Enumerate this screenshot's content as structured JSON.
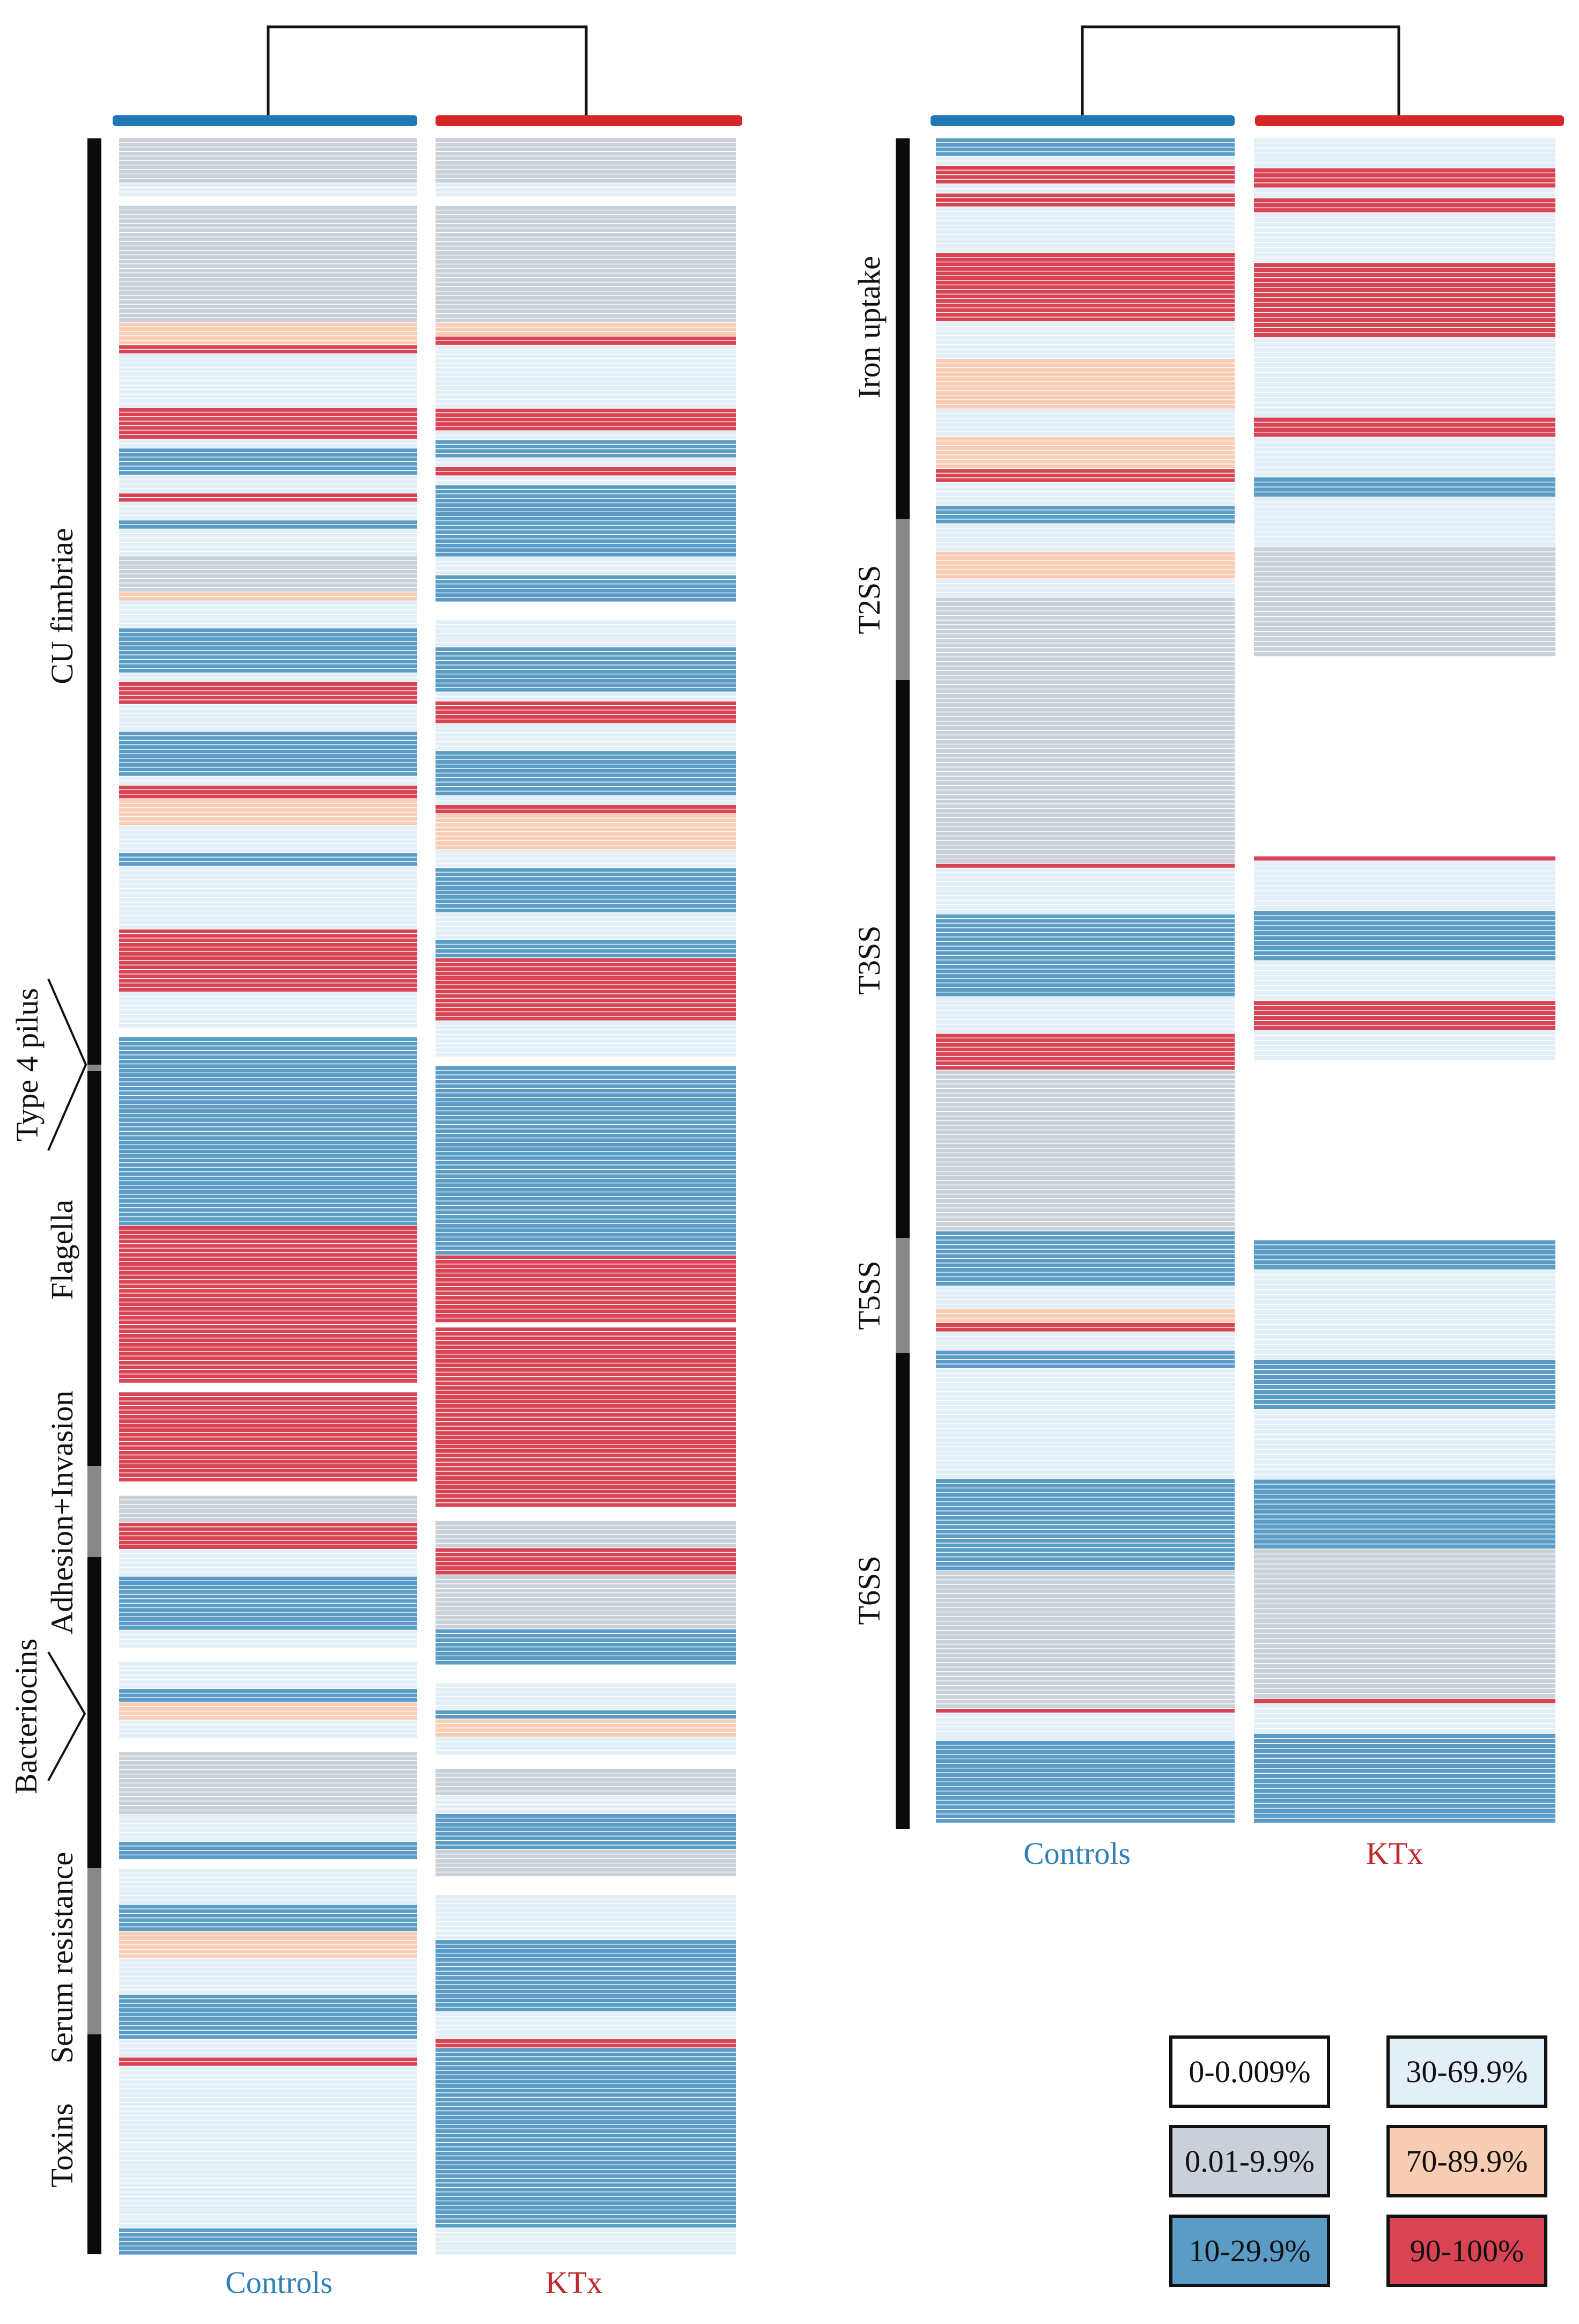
{
  "colors": {
    "white": "#ffffff",
    "grey": "#c9d0d8",
    "blue": "#5a9cc5",
    "light": "#e3eff7",
    "orange": "#f8cdb4",
    "red": "#d94455",
    "controls_bar": "#1f77b4",
    "ktx_bar": "#d62728"
  },
  "chart_data": [
    {
      "type": "heatmap",
      "title": "",
      "columns": [
        "Controls",
        "KTx"
      ],
      "category_labels": [
        "CU fimbriae",
        "Type 4 pilus",
        "Flagella",
        "Adhesion+Invasion",
        "Bacteriocins",
        "Serum resistance",
        "Toxins"
      ],
      "dendrogram": [
        "Controls",
        "KTx"
      ],
      "blocks": {
        "Controls": [
          [
            "grey",
            10
          ],
          [
            "light",
            3
          ],
          [
            "white",
            2
          ],
          [
            "grey",
            26
          ],
          [
            "orange",
            5
          ],
          [
            "red",
            2
          ],
          [
            "light",
            12
          ],
          [
            "red",
            7
          ],
          [
            "light",
            2
          ],
          [
            "blue",
            6
          ],
          [
            "light",
            4
          ],
          [
            "red",
            2
          ],
          [
            "light",
            4
          ],
          [
            "blue",
            2
          ],
          [
            "light",
            6
          ],
          [
            "grey",
            8
          ],
          [
            "orange",
            2
          ],
          [
            "light",
            6
          ],
          [
            "blue",
            10
          ],
          [
            "light",
            2
          ],
          [
            "red",
            5
          ],
          [
            "light",
            6
          ],
          [
            "blue",
            10
          ],
          [
            "light",
            2
          ],
          [
            "red",
            3
          ],
          [
            "orange",
            6
          ],
          [
            "light",
            6
          ],
          [
            "blue",
            3
          ],
          [
            "light",
            14
          ],
          [
            "red",
            14
          ],
          [
            "light",
            8
          ],
          [
            "white",
            2
          ],
          [
            "blue",
            42
          ],
          [
            "red",
            35
          ],
          [
            "white",
            2
          ],
          [
            "red",
            20
          ],
          [
            "white",
            3
          ],
          [
            "grey",
            6
          ],
          [
            "red",
            6
          ],
          [
            "light",
            6
          ],
          [
            "blue",
            12
          ],
          [
            "light",
            4
          ],
          [
            "white",
            3
          ],
          [
            "light",
            6
          ],
          [
            "blue",
            3
          ],
          [
            "orange",
            4
          ],
          [
            "light",
            4
          ],
          [
            "white",
            3
          ],
          [
            "grey",
            14
          ],
          [
            "light",
            6
          ],
          [
            "blue",
            4
          ],
          [
            "white",
            2
          ],
          [
            "light",
            8
          ],
          [
            "blue",
            6
          ],
          [
            "orange",
            6
          ],
          [
            "light",
            8
          ],
          [
            "blue",
            10
          ],
          [
            "light",
            4
          ],
          [
            "red",
            2
          ],
          [
            "light",
            36
          ],
          [
            "blue",
            6
          ]
        ],
        "KTx": [
          [
            "grey",
            10
          ],
          [
            "light",
            3
          ],
          [
            "white",
            2
          ],
          [
            "grey",
            26
          ],
          [
            "orange",
            3
          ],
          [
            "red",
            2
          ],
          [
            "light",
            14
          ],
          [
            "red",
            5
          ],
          [
            "light",
            2
          ],
          [
            "blue",
            4
          ],
          [
            "light",
            2
          ],
          [
            "red",
            2
          ],
          [
            "light",
            2
          ],
          [
            "blue",
            16
          ],
          [
            "light",
            4
          ],
          [
            "blue",
            6
          ],
          [
            "white",
            4
          ],
          [
            "light",
            6
          ],
          [
            "blue",
            10
          ],
          [
            "light",
            2
          ],
          [
            "red",
            5
          ],
          [
            "light",
            6
          ],
          [
            "blue",
            10
          ],
          [
            "light",
            2
          ],
          [
            "red",
            2
          ],
          [
            "orange",
            8
          ],
          [
            "light",
            4
          ],
          [
            "blue",
            10
          ],
          [
            "light",
            6
          ],
          [
            "blue",
            4
          ],
          [
            "red",
            14
          ],
          [
            "light",
            8
          ],
          [
            "white",
            2
          ],
          [
            "blue",
            42
          ],
          [
            "red",
            15
          ],
          [
            "white",
            1
          ],
          [
            "red",
            40
          ],
          [
            "white",
            3
          ],
          [
            "grey",
            6
          ],
          [
            "red",
            6
          ],
          [
            "grey",
            12
          ],
          [
            "blue",
            8
          ],
          [
            "white",
            4
          ],
          [
            "light",
            6
          ],
          [
            "blue",
            2
          ],
          [
            "orange",
            4
          ],
          [
            "light",
            4
          ],
          [
            "white",
            3
          ],
          [
            "grey",
            6
          ],
          [
            "light",
            4
          ],
          [
            "blue",
            8
          ],
          [
            "grey",
            6
          ],
          [
            "white",
            4
          ],
          [
            "light",
            10
          ],
          [
            "blue",
            16
          ],
          [
            "light",
            6
          ],
          [
            "red",
            2
          ],
          [
            "blue",
            40
          ],
          [
            "light",
            6
          ]
        ]
      }
    },
    {
      "type": "heatmap",
      "title": "",
      "columns": [
        "Controls",
        "KTx"
      ],
      "category_labels": [
        "Iron uptake",
        "T2SS",
        "T3SS",
        "T5SS",
        "T6SS"
      ],
      "dendrogram": [
        "Controls",
        "KTx"
      ],
      "blocks": {
        "Controls": [
          [
            "blue",
            4
          ],
          [
            "light",
            2
          ],
          [
            "red",
            4
          ],
          [
            "light",
            2
          ],
          [
            "red",
            3
          ],
          [
            "light",
            10
          ],
          [
            "red",
            15
          ],
          [
            "light",
            8
          ],
          [
            "orange",
            11
          ],
          [
            "light",
            6
          ],
          [
            "orange",
            7
          ],
          [
            "red",
            3
          ],
          [
            "light",
            5
          ],
          [
            "blue",
            4
          ],
          [
            "light",
            6
          ],
          [
            "orange",
            6
          ],
          [
            "light",
            4
          ],
          [
            "grey",
            18
          ],
          [
            "grey",
            40
          ],
          [
            "red",
            1
          ],
          [
            "light",
            10
          ],
          [
            "blue",
            18
          ],
          [
            "light",
            8
          ],
          [
            "red",
            8
          ],
          [
            "grey",
            35
          ],
          [
            "blue",
            12
          ],
          [
            "light",
            5
          ],
          [
            "orange",
            3
          ],
          [
            "red",
            2
          ],
          [
            "light",
            4
          ],
          [
            "blue",
            4
          ],
          [
            "light",
            24
          ],
          [
            "blue",
            20
          ],
          [
            "grey",
            30
          ],
          [
            "red",
            1
          ],
          [
            "light",
            6
          ],
          [
            "blue",
            18
          ]
        ],
        "KTx": [
          [
            "light",
            6
          ],
          [
            "red",
            4
          ],
          [
            "light",
            2
          ],
          [
            "red",
            3
          ],
          [
            "light",
            10
          ],
          [
            "red",
            15
          ],
          [
            "light",
            16
          ],
          [
            "red",
            4
          ],
          [
            "light",
            8
          ],
          [
            "blue",
            4
          ],
          [
            "light",
            10
          ],
          [
            "grey",
            22
          ],
          [
            "white",
            40
          ],
          [
            "red",
            1
          ],
          [
            "light",
            10
          ],
          [
            "blue",
            10
          ],
          [
            "light",
            8
          ],
          [
            "red",
            6
          ],
          [
            "light",
            6
          ],
          [
            "white",
            36
          ],
          [
            "blue",
            6
          ],
          [
            "light",
            18
          ],
          [
            "blue",
            10
          ],
          [
            "light",
            14
          ],
          [
            "blue",
            14
          ],
          [
            "grey",
            30
          ],
          [
            "red",
            1
          ],
          [
            "light",
            6
          ],
          [
            "blue",
            18
          ]
        ]
      }
    }
  ],
  "legend": [
    {
      "label": "0-0.009%",
      "color": "white",
      "text_color": "#111111"
    },
    {
      "label": "30-69.9%",
      "color": "light",
      "text_color": "#111111"
    },
    {
      "label": "0.01-9.9%",
      "color": "grey",
      "text_color": "#111111"
    },
    {
      "label": "70-89.9%",
      "color": "orange",
      "text_color": "#111111"
    },
    {
      "label": "10-29.9%",
      "color": "blue",
      "text_color": "#111111"
    },
    {
      "label": "90-100%",
      "color": "red",
      "text_color": "#111111"
    }
  ]
}
